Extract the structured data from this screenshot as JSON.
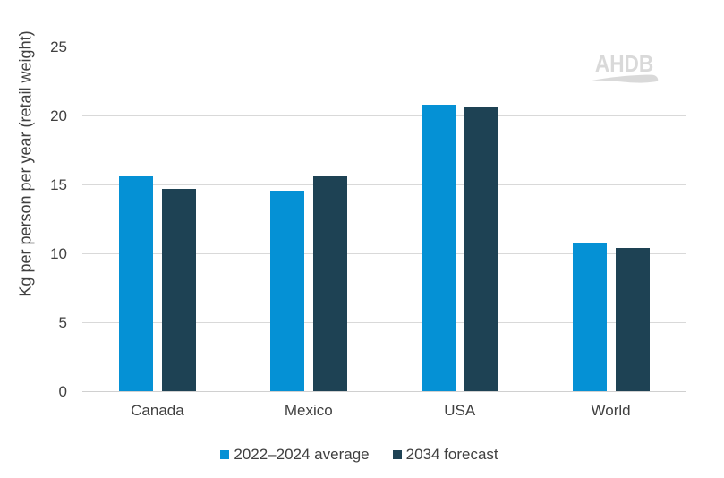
{
  "chart_data": {
    "type": "bar",
    "title": "",
    "xlabel": "",
    "ylabel": "Kg per person per year (retail weight)",
    "categories": [
      "Canada",
      "Mexico",
      "USA",
      "World"
    ],
    "series": [
      {
        "name": "2022–2024 average",
        "color": "#0591d5",
        "values": [
          15.6,
          14.6,
          20.8,
          10.8
        ]
      },
      {
        "name": "2034 forecast",
        "color": "#1e4254",
        "values": [
          14.7,
          15.6,
          20.7,
          10.4
        ]
      }
    ],
    "ylim": [
      0,
      25
    ],
    "yticks": [
      0,
      5,
      10,
      15,
      20,
      25
    ],
    "grid": true,
    "legend_position": "bottom"
  },
  "watermark": {
    "text": "AHDB",
    "color": "#d9d9d9"
  },
  "colors": {
    "background": "#ffffff",
    "gridline": "#d9d9d9",
    "axis_line": "#d0d0d0",
    "text": "#404040"
  }
}
